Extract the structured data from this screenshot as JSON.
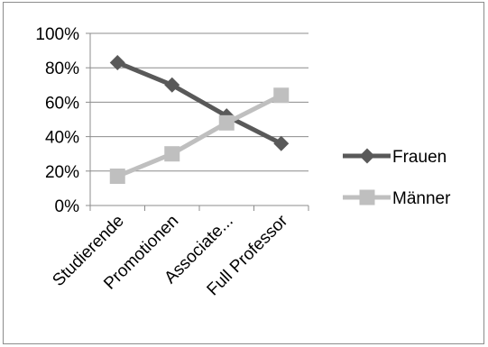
{
  "chart_data": {
    "type": "line",
    "title": "",
    "xlabel": "",
    "ylabel": "",
    "categories": [
      "Studierende",
      "Promotionen",
      "Associate...",
      "Full Professor"
    ],
    "y_ticks": [
      "0%",
      "20%",
      "40%",
      "60%",
      "80%",
      "100%"
    ],
    "ylim": [
      0,
      100
    ],
    "grid": true,
    "legend_position": "right",
    "series": [
      {
        "name": "Frauen",
        "values": [
          83,
          70,
          52,
          36
        ],
        "color": "#595959",
        "marker": "diamond"
      },
      {
        "name": "Männer",
        "values": [
          17,
          30,
          48,
          64
        ],
        "color": "#bfbfbf",
        "marker": "square"
      }
    ]
  }
}
